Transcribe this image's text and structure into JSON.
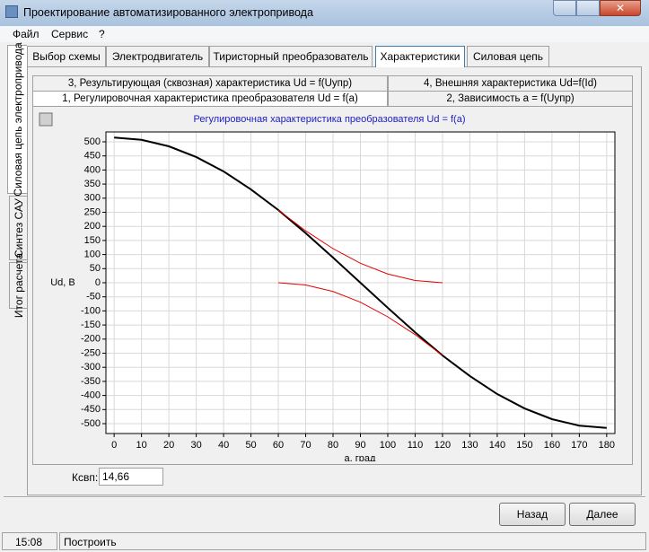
{
  "window": {
    "title": "Проектирование автоматизированного электропривода"
  },
  "menu": [
    "Файл",
    "Сервис",
    "?"
  ],
  "side_tabs": [
    "Силовая цепь электропривода",
    "Синтез САУ",
    "Итог расчета"
  ],
  "tabs": [
    "Выбор схемы",
    "Электродвигатель",
    "Тиристорный преобразователь",
    "Характеристики",
    "Силовая цепь"
  ],
  "subtabs": {
    "row1": [
      "3, Результирующая (сквозная) характеристика Ud = f(Uупр)",
      "4, Внешняя характеристика Ud=f(Id)"
    ],
    "row2": [
      "1, Регулировочная характеристика преобразователя Ud = f(a)",
      "2, Зависимость a = f(Uупр)"
    ]
  },
  "chart_data": {
    "type": "line",
    "title": "Регулировочная характеристика преобразователя Ud = f(a)",
    "xlabel": "a, град",
    "ylabel": "Ud, В",
    "series": [
      {
        "color": "#000000",
        "x": [
          0,
          10,
          20,
          30,
          40,
          50,
          60,
          70,
          80,
          90,
          100,
          110,
          120,
          130,
          140,
          150,
          160,
          170,
          180
        ],
        "values": [
          515,
          507,
          484,
          446,
          395,
          331,
          258,
          176,
          89,
          0,
          -89,
          -176,
          -258,
          -331,
          -395,
          -446,
          -484,
          -507,
          -515
        ]
      },
      {
        "color": "#e00000",
        "x": [
          60,
          70,
          80,
          90,
          100,
          110,
          120
        ],
        "values": [
          258,
          184,
          121,
          69,
          31,
          8,
          0
        ]
      },
      {
        "color": "#e00000",
        "x": [
          60,
          70,
          80,
          90,
          100,
          110,
          120
        ],
        "values": [
          0,
          -8,
          -31,
          -69,
          -121,
          -184,
          -258
        ]
      }
    ],
    "xlim": [
      -3,
      183
    ],
    "ylim": [
      -535,
      535
    ],
    "xticks": [
      0,
      10,
      20,
      30,
      40,
      50,
      60,
      70,
      80,
      90,
      100,
      110,
      120,
      130,
      140,
      150,
      160,
      170,
      180
    ],
    "yticks": [
      -500,
      -450,
      -400,
      -350,
      -300,
      -250,
      -200,
      -150,
      -100,
      -50,
      0,
      50,
      100,
      150,
      200,
      250,
      300,
      350,
      400,
      450,
      500
    ],
    "grid": true
  },
  "ksvp": {
    "label": "Ксвп:",
    "value": "14,66"
  },
  "buttons": [
    "Назад",
    "Далее"
  ],
  "status": [
    "15:08",
    "Построить"
  ]
}
